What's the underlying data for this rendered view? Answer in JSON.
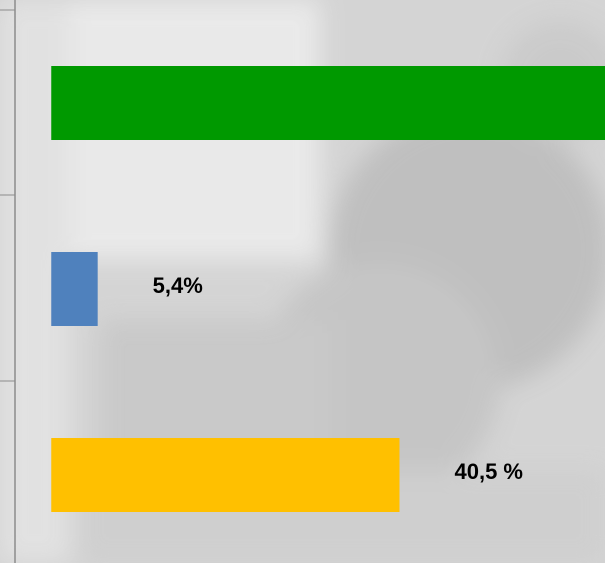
{
  "chart_data": {
    "type": "barh",
    "series": [
      {
        "color": "#009900",
        "values": [
          65,
          null,
          null
        ]
      }
    ],
    "values": [
      65,
      5.4,
      40.5
    ],
    "value_labels": [
      null,
      "5,4%",
      "40,5 %"
    ],
    "colors": [
      "#009900",
      "#4f81bd",
      "#ffc000"
    ],
    "xlim": [
      -4.1,
      64.4
    ]
  }
}
